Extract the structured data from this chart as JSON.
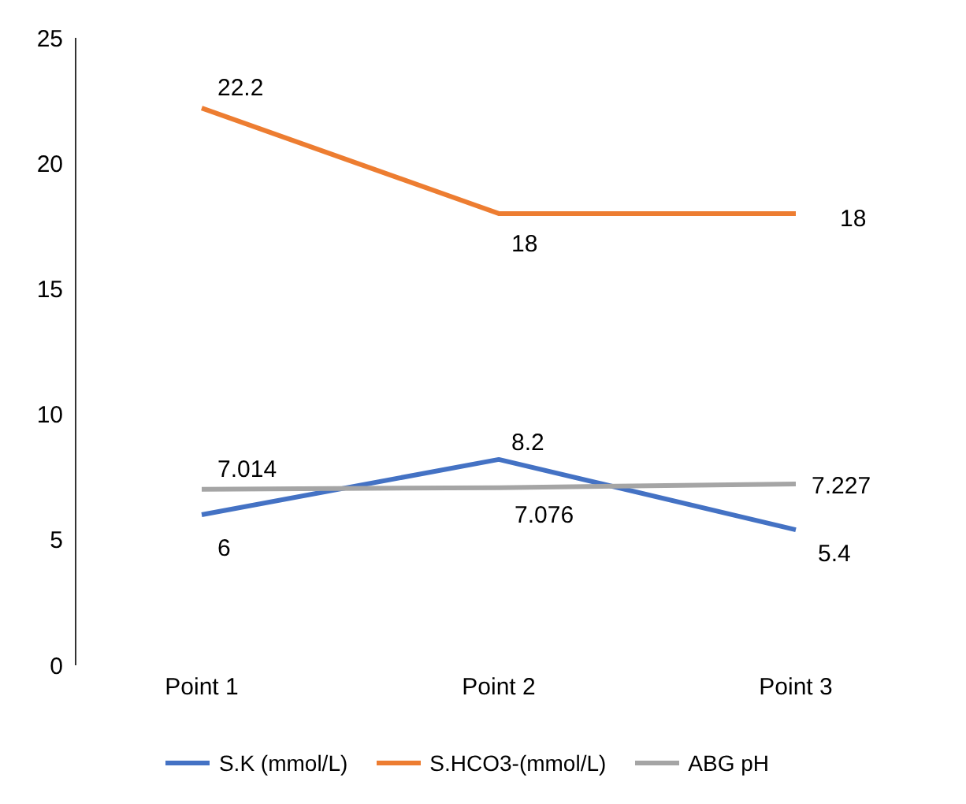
{
  "chart_data": {
    "type": "line",
    "categories": [
      "Point 1",
      "Point 2",
      "Point 3"
    ],
    "series": [
      {
        "name": "S.K (mmol/L)",
        "color": "#4472c4",
        "values": [
          6,
          8.2,
          5.4
        ]
      },
      {
        "name": "S.HCO3-(mmol/L)",
        "color": "#ed7d31",
        "values": [
          22.2,
          18,
          18
        ]
      },
      {
        "name": "ABG pH",
        "color": "#a5a5a5",
        "values": [
          7.014,
          7.076,
          7.227
        ]
      }
    ],
    "ylim": [
      0,
      25
    ],
    "yticks": [
      0,
      5,
      10,
      15,
      20,
      25
    ],
    "grid": false,
    "legend": "bottom",
    "marker": "none",
    "line_style": "solid",
    "data_labels": true
  }
}
